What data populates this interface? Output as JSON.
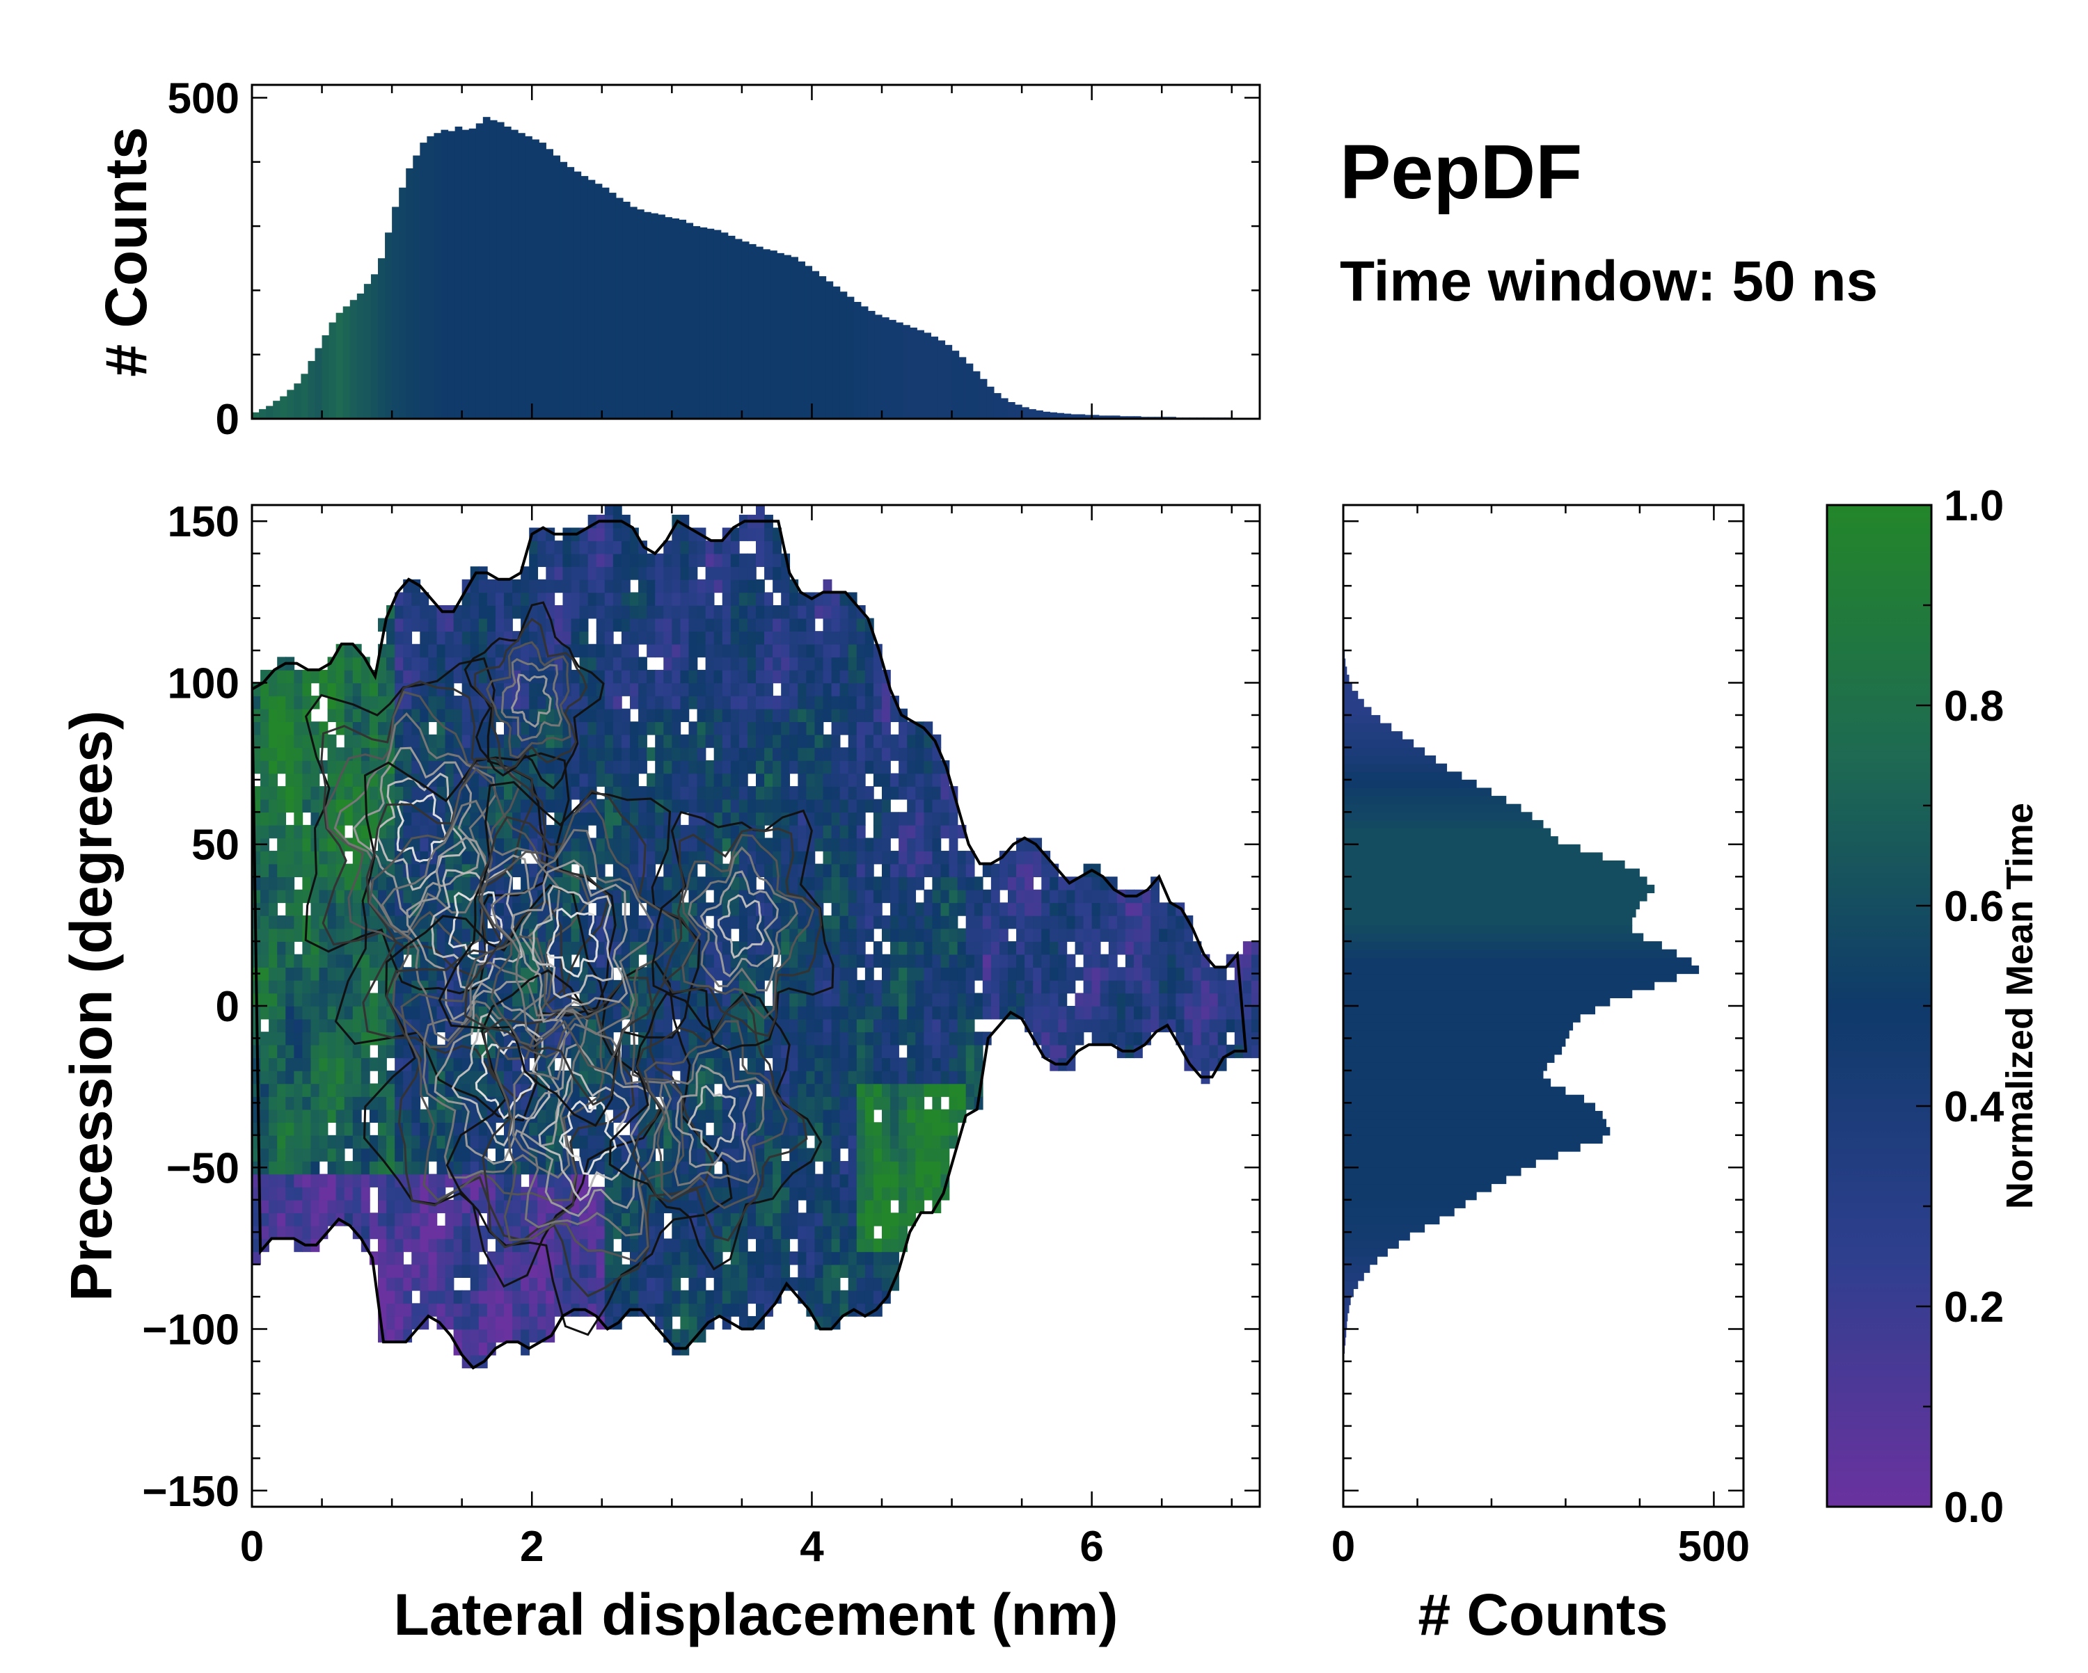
{
  "chart_data": [
    {
      "id": "top-histogram",
      "type": "bar",
      "orientation": "vertical",
      "ylabel": "# Counts",
      "xlim": [
        0,
        7.2
      ],
      "ylim": [
        0,
        520
      ],
      "yticks": [
        0,
        500
      ],
      "bin_width": 0.05,
      "bin_start": 0,
      "values": [
        10,
        15,
        20,
        28,
        35,
        45,
        55,
        70,
        90,
        110,
        130,
        150,
        165,
        175,
        185,
        195,
        210,
        225,
        250,
        290,
        330,
        360,
        390,
        410,
        430,
        440,
        445,
        450,
        448,
        455,
        450,
        452,
        460,
        470,
        465,
        462,
        455,
        450,
        445,
        440,
        435,
        430,
        420,
        410,
        400,
        392,
        385,
        378,
        372,
        366,
        360,
        352,
        344,
        338,
        330,
        326,
        322,
        320,
        318,
        314,
        312,
        310,
        305,
        300,
        298,
        296,
        294,
        290,
        285,
        280,
        276,
        272,
        268,
        264,
        262,
        258,
        255,
        252,
        245,
        238,
        230,
        222,
        214,
        206,
        198,
        190,
        182,
        175,
        168,
        162,
        158,
        154,
        150,
        146,
        142,
        138,
        134,
        128,
        122,
        115,
        106,
        96,
        86,
        74,
        62,
        50,
        40,
        32,
        26,
        22,
        18,
        15,
        13,
        11,
        10,
        9,
        8,
        7,
        7,
        6,
        6,
        5,
        5,
        5,
        4,
        4,
        4,
        3,
        3,
        3,
        3,
        3,
        2,
        2,
        2,
        2,
        2,
        2,
        2,
        2,
        1,
        1,
        1,
        1
      ],
      "color_values": [
        0.75,
        0.72,
        0.7,
        0.72,
        0.74,
        0.72,
        0.7,
        0.72,
        0.68,
        0.66,
        0.7,
        0.72,
        0.75,
        0.72,
        0.68,
        0.66,
        0.65,
        0.62,
        0.6,
        0.58,
        0.56,
        0.55,
        0.54,
        0.53,
        0.52,
        0.52,
        0.51,
        0.5,
        0.5,
        0.5,
        0.5,
        0.5,
        0.5,
        0.5,
        0.5,
        0.5,
        0.5,
        0.5,
        0.5,
        0.5,
        0.5,
        0.5,
        0.5,
        0.5,
        0.5,
        0.5,
        0.5,
        0.5,
        0.5,
        0.5,
        0.5,
        0.5,
        0.5,
        0.5,
        0.5,
        0.5,
        0.5,
        0.5,
        0.5,
        0.5,
        0.5,
        0.5,
        0.5,
        0.5,
        0.5,
        0.5,
        0.5,
        0.5,
        0.5,
        0.5,
        0.5,
        0.5,
        0.5,
        0.5,
        0.5,
        0.5,
        0.5,
        0.5,
        0.5,
        0.5,
        0.5,
        0.5,
        0.5,
        0.5,
        0.5,
        0.5,
        0.48,
        0.48,
        0.47,
        0.47,
        0.46,
        0.46,
        0.46,
        0.45,
        0.45,
        0.45,
        0.45,
        0.45,
        0.45,
        0.45,
        0.46,
        0.46,
        0.46,
        0.46,
        0.45,
        0.45,
        0.44,
        0.44,
        0.43,
        0.43,
        0.42,
        0.42,
        0.42,
        0.42,
        0.42,
        0.42,
        0.42,
        0.42,
        0.42,
        0.42,
        0.42,
        0.42,
        0.42,
        0.42,
        0.42,
        0.42,
        0.42,
        0.42,
        0.42,
        0.42,
        0.42,
        0.42,
        0.42,
        0.42,
        0.42,
        0.42,
        0.42,
        0.42,
        0.42,
        0.42,
        0.42,
        0.42
      ]
    },
    {
      "id": "main-heatmap",
      "type": "heatmap",
      "xlabel": "Lateral displacement (nm)",
      "ylabel": "Precession (degrees)",
      "xlim": [
        0,
        7.2
      ],
      "ylim": [
        -155,
        155
      ],
      "xticks": [
        0,
        2,
        4,
        6
      ],
      "yticks": [
        -150,
        -100,
        -50,
        0,
        50,
        100,
        150
      ],
      "ytick_labels": [
        "−150",
        "−100",
        "−50",
        "0",
        "50",
        "100",
        "150"
      ],
      "colormap": [
        "#6a329f",
        "#2e3f8e",
        "#0f3a6a",
        "#1e6a52",
        "#23862a"
      ],
      "density_peaks": [
        {
          "x": 1.2,
          "y": 55,
          "w": 0.9
        },
        {
          "x": 1.6,
          "y": 25,
          "w": 1.0
        },
        {
          "x": 1.8,
          "y": -22,
          "w": 1.0
        },
        {
          "x": 2.4,
          "y": -40,
          "w": 0.95
        },
        {
          "x": 2.3,
          "y": 20,
          "w": 0.9
        },
        {
          "x": 3.3,
          "y": -35,
          "w": 0.8
        },
        {
          "x": 3.5,
          "y": 25,
          "w": 0.75
        },
        {
          "x": 2.0,
          "y": 95,
          "w": 0.6
        }
      ]
    },
    {
      "id": "right-histogram",
      "type": "bar",
      "orientation": "horizontal",
      "xlabel": "# Counts",
      "xlim": [
        0,
        540
      ],
      "xticks": [
        0,
        500
      ],
      "bin_start": -155,
      "bin_width": 2.5,
      "values": [
        0,
        0,
        0,
        0,
        0,
        0,
        0,
        0,
        0,
        0,
        0,
        0,
        0,
        0,
        0,
        0,
        0,
        0,
        0,
        2,
        3,
        4,
        5,
        6,
        8,
        10,
        14,
        20,
        28,
        36,
        46,
        60,
        75,
        90,
        110,
        130,
        150,
        165,
        180,
        200,
        220,
        240,
        260,
        290,
        320,
        350,
        360,
        355,
        350,
        340,
        325,
        300,
        280,
        270,
        275,
        285,
        295,
        300,
        305,
        310,
        320,
        340,
        360,
        390,
        420,
        450,
        480,
        470,
        450,
        430,
        405,
        390,
        390,
        395,
        400,
        410,
        420,
        410,
        400,
        380,
        350,
        320,
        290,
        280,
        270,
        255,
        240,
        220,
        200,
        180,
        160,
        140,
        125,
        110,
        95,
        80,
        65,
        50,
        38,
        28,
        20,
        12,
        8,
        5,
        3,
        2,
        1,
        0,
        0,
        0,
        0,
        0,
        0,
        0,
        0,
        0,
        0,
        0,
        0,
        0,
        0,
        0,
        0,
        0
      ],
      "color_values": [
        0.5,
        0.5,
        0.5,
        0.5,
        0.5,
        0.5,
        0.5,
        0.5,
        0.5,
        0.5,
        0.5,
        0.5,
        0.5,
        0.5,
        0.5,
        0.5,
        0.5,
        0.5,
        0.5,
        0.2,
        0.22,
        0.25,
        0.28,
        0.3,
        0.32,
        0.33,
        0.35,
        0.36,
        0.38,
        0.4,
        0.42,
        0.44,
        0.45,
        0.46,
        0.47,
        0.48,
        0.48,
        0.49,
        0.5,
        0.5,
        0.5,
        0.5,
        0.5,
        0.5,
        0.5,
        0.5,
        0.5,
        0.5,
        0.5,
        0.5,
        0.5,
        0.5,
        0.5,
        0.5,
        0.5,
        0.5,
        0.5,
        0.5,
        0.5,
        0.5,
        0.5,
        0.5,
        0.5,
        0.5,
        0.5,
        0.5,
        0.5,
        0.5,
        0.52,
        0.54,
        0.56,
        0.58,
        0.6,
        0.6,
        0.6,
        0.6,
        0.6,
        0.6,
        0.6,
        0.6,
        0.6,
        0.6,
        0.6,
        0.6,
        0.58,
        0.56,
        0.55,
        0.54,
        0.52,
        0.5,
        0.48,
        0.45,
        0.42,
        0.4,
        0.38,
        0.36,
        0.34,
        0.32,
        0.3,
        0.3,
        0.3,
        0.3,
        0.3,
        0.3,
        0.3,
        0.3,
        0.3,
        0.3,
        0.3,
        0.3,
        0.3,
        0.3,
        0.3,
        0.3,
        0.3,
        0.3,
        0.3,
        0.3,
        0.3,
        0.3,
        0.3,
        0.3,
        0.3
      ]
    },
    {
      "id": "colorbar",
      "type": "colorbar",
      "label": "Normalized Mean Time",
      "range": [
        0.0,
        1.0
      ],
      "ticks": [
        0.0,
        0.2,
        0.4,
        0.6,
        0.8,
        1.0
      ],
      "tick_labels": [
        "0.0",
        "0.2",
        "0.4",
        "0.6",
        "0.8",
        "1.0"
      ]
    }
  ],
  "annotation": {
    "title": "PepDF",
    "subtitle": "Time window: 50 ns"
  },
  "colors": {
    "low": "#6a329f",
    "mid": "#0f3a6a",
    "high": "#23862a"
  }
}
